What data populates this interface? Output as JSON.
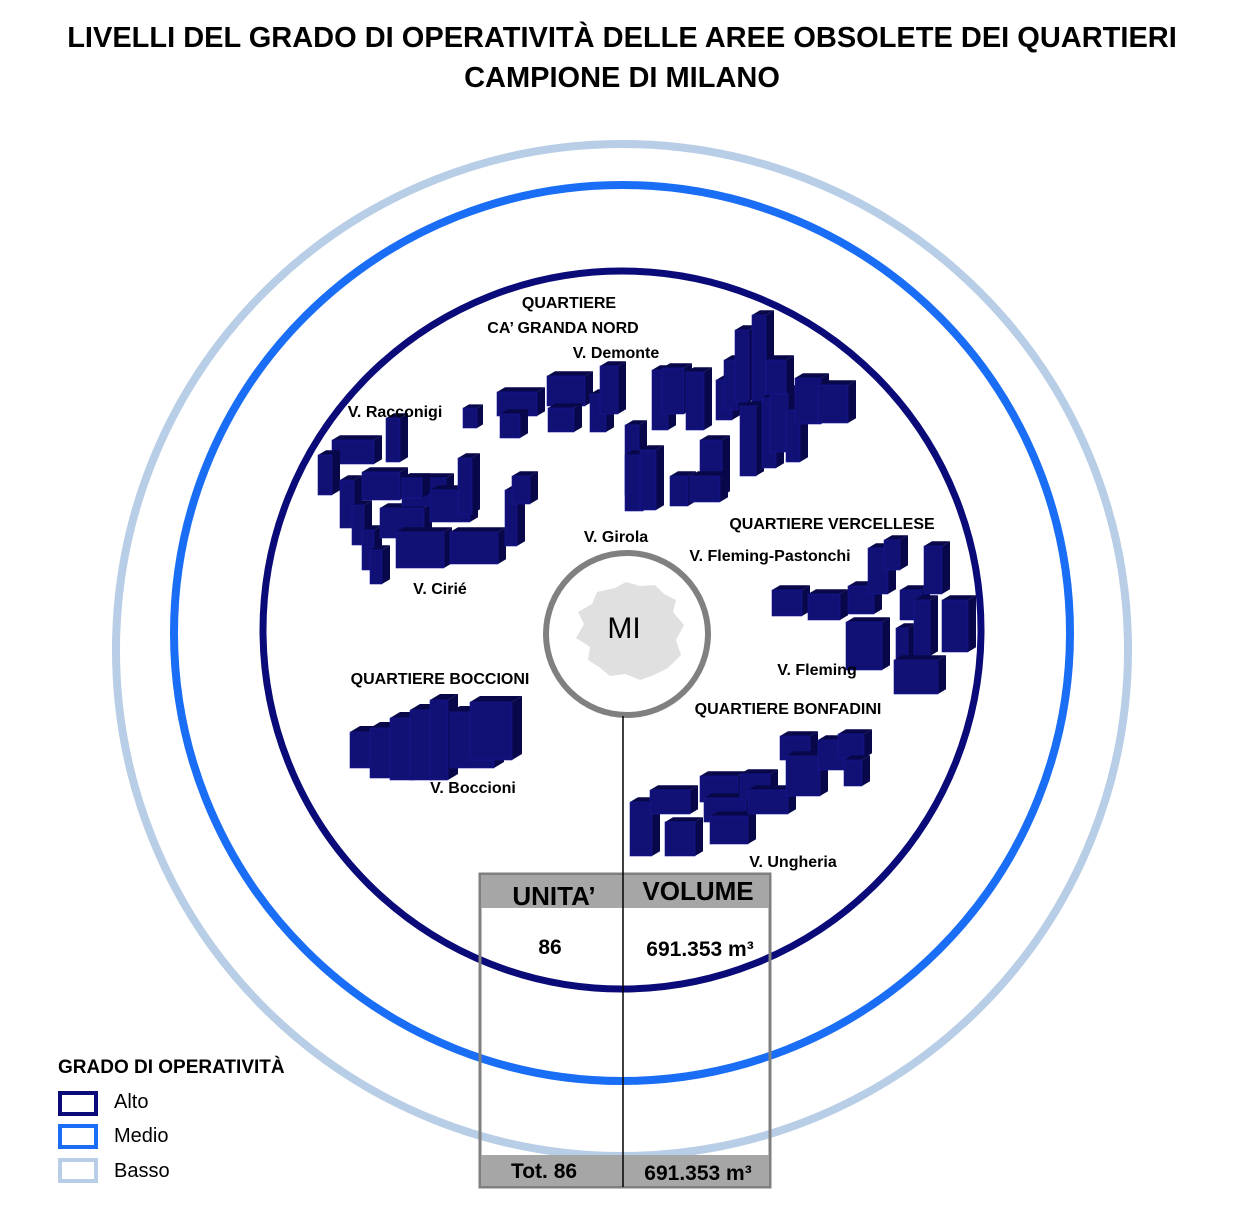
{
  "title": {
    "line1": "LIVELLI DEL GRADO DI OPERATIVITÀ DELLE AREE OBSOLETE DEI QUARTIERI",
    "line2": "CAMPIONE DI MILANO"
  },
  "center": {
    "label": "MI"
  },
  "areas": {
    "ca_granda": {
      "title1": "QUARTIERE",
      "title2": "CA’ GRANDA NORD",
      "street1": "V. Demonte",
      "street2": "V. Racconigi",
      "street3": "V. Girola",
      "street4": "V. Cirié"
    },
    "vercellese": {
      "title": "QUARTIERE VERCELLESE",
      "street1": "V. Fleming-Pastonchi",
      "street2": "V. Fleming"
    },
    "boccioni": {
      "title": "QUARTIERE BOCCIONI",
      "street1": "V. Boccioni"
    },
    "bonfadini": {
      "title": "QUARTIERE BONFADINI",
      "street1": "V. Ungheria"
    }
  },
  "table": {
    "headers": [
      "UNITA’",
      "VOLUME"
    ],
    "row": {
      "units": "86",
      "volume": "691.353 m³"
    },
    "total": {
      "units": "Tot. 86",
      "volume": "691.353 m³"
    }
  },
  "legend": {
    "title": "GRADO DI OPERATIVITÀ",
    "items": [
      {
        "label": "Alto",
        "color": "#0a0a78"
      },
      {
        "label": "Medio",
        "color": "#1a6ef5"
      },
      {
        "label": "Basso",
        "color": "#b8cde6"
      }
    ]
  },
  "colors": {
    "building": "#101075",
    "building_side": "#07074a",
    "table_header": "#a6a6a6",
    "table_border": "#7f7f7f",
    "city_fill": "#e0e0e0"
  }
}
